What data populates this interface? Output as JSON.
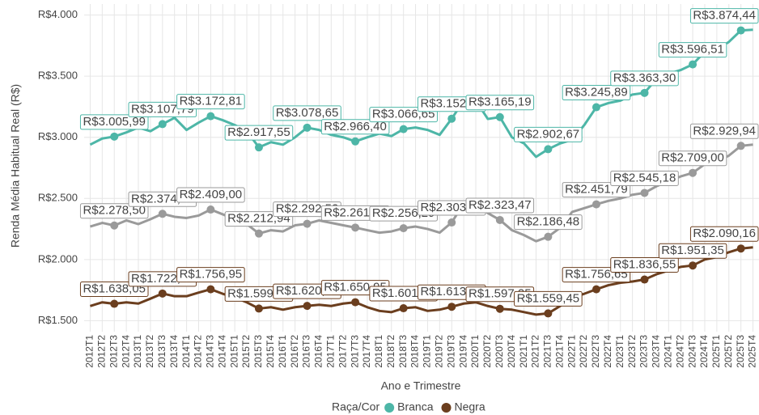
{
  "chart_data": {
    "type": "line",
    "y_label": "Renda Média Habitual Real (R$)",
    "x_label": "Ano e Trimestre",
    "legend_title": "Raça/Cor",
    "legend_position": "bottom",
    "grid": true,
    "ylim": [
      1410,
      4090
    ],
    "yticks": [
      {
        "value": 1500,
        "label": "R$1.500"
      },
      {
        "value": 2000,
        "label": "R$2.000"
      },
      {
        "value": 2500,
        "label": "R$2.500"
      },
      {
        "value": 3000,
        "label": "R$3.000"
      },
      {
        "value": 3500,
        "label": "R$3.500"
      },
      {
        "value": 4000,
        "label": "R$4.000"
      }
    ],
    "categories": [
      "2012T1",
      "2012T2",
      "2012T3",
      "2012T4",
      "2013T1",
      "2013T2",
      "2013T3",
      "2013T4",
      "2014T1",
      "2014T2",
      "2014T3",
      "2014T4",
      "2015T1",
      "2015T2",
      "2015T3",
      "2015T4",
      "2016T1",
      "2016T2",
      "2016T3",
      "2016T4",
      "2017T1",
      "2017T2",
      "2017T3",
      "2017T4",
      "2018T1",
      "2018T2",
      "2018T3",
      "2018T4",
      "2019T1",
      "2019T2",
      "2019T3",
      "2019T4",
      "2020T1",
      "2020T2",
      "2020T3",
      "2020T4",
      "2021T1",
      "2021T2",
      "2021T3",
      "2021T4",
      "2022T1",
      "2022T2",
      "2022T3",
      "2022T4",
      "2023T1",
      "2023T2",
      "2023T3",
      "2023T4",
      "2024T1",
      "2024T2",
      "2024T3",
      "2024T4",
      "2025T1",
      "2025T2",
      "2025T3",
      "2025T4"
    ],
    "series": [
      {
        "name": "Branca",
        "color": "#4db6a7",
        "label_color": "#3aa797",
        "values": [
          2940,
          2990,
          3005.99,
          3040,
          3080,
          3050,
          3107.79,
          3160,
          3060,
          3120,
          3172.81,
          3140,
          3100,
          3050,
          2917.55,
          2960,
          2940,
          3000,
          3078.65,
          3060,
          3020,
          3000,
          2966.4,
          3000,
          3030,
          3010,
          3066.65,
          3080,
          3060,
          3020,
          3152.37,
          3300,
          3300,
          3150,
          3165.19,
          3000,
          2950,
          2840,
          2902.67,
          2950,
          2980,
          3100,
          3245.89,
          3280,
          3300,
          3350,
          3363.3,
          3480,
          3520,
          3550,
          3596.51,
          3700,
          3720,
          3780,
          3874.44,
          3880
        ],
        "value_labels": [
          null,
          null,
          "R$3.005,99",
          null,
          null,
          null,
          "R$3.107,79",
          null,
          null,
          null,
          "R$3.172,81",
          null,
          null,
          null,
          "R$2.917,55",
          null,
          null,
          null,
          "R$3.078,65",
          null,
          null,
          null,
          "R$2.966,40",
          null,
          null,
          null,
          "R$3.066,65",
          null,
          null,
          null,
          "R$3.152,37",
          null,
          null,
          null,
          "R$3.165,19",
          null,
          null,
          null,
          "R$2.902,67",
          null,
          null,
          null,
          "R$3.245,89",
          null,
          null,
          null,
          "R$3.363,30",
          null,
          null,
          null,
          "R$3.596,51",
          null,
          null,
          null,
          "R$3.874,44",
          null
        ]
      },
      {
        "color": "#9a9a9a",
        "label_color": "#777777",
        "values": [
          2270,
          2300,
          2278.5,
          2320,
          2290,
          2330,
          2374.17,
          2350,
          2340,
          2360,
          2409.0,
          2370,
          2330,
          2290,
          2212.94,
          2240,
          2230,
          2280,
          2292.52,
          2320,
          2300,
          2280,
          2261.38,
          2240,
          2220,
          2230,
          2256.29,
          2270,
          2250,
          2220,
          2303.14,
          2460,
          2470,
          2380,
          2323.47,
          2240,
          2200,
          2150,
          2186.48,
          2260,
          2390,
          2420,
          2451.79,
          2480,
          2500,
          2530,
          2545.18,
          2600,
          2640,
          2680,
          2709.0,
          2780,
          2800,
          2850,
          2929.94,
          2940
        ],
        "value_labels": [
          null,
          null,
          "R$2.278,50",
          null,
          null,
          null,
          "R$2.374,17",
          null,
          null,
          null,
          "R$2.409,00",
          null,
          null,
          null,
          "R$2.212,94",
          null,
          null,
          null,
          "R$2.292,52",
          null,
          null,
          null,
          "R$2.261,38",
          null,
          null,
          null,
          "R$2.256,29",
          null,
          null,
          null,
          "R$2.303,14",
          null,
          null,
          null,
          "R$2.323,47",
          null,
          null,
          null,
          "R$2.186,48",
          null,
          null,
          null,
          "R$2.451,79",
          null,
          null,
          null,
          "R$2.545,18",
          null,
          null,
          null,
          "R$2.709,00",
          null,
          null,
          null,
          "R$2.929,94",
          null
        ]
      },
      {
        "name": "Negra",
        "color": "#6b3e1e",
        "label_color": "#6b3e1e",
        "values": [
          1620,
          1650,
          1638.05,
          1650,
          1640,
          1680,
          1722.14,
          1700,
          1700,
          1730,
          1756.95,
          1720,
          1690,
          1650,
          1599.02,
          1610,
          1590,
          1610,
          1620.76,
          1630,
          1620,
          1640,
          1650.95,
          1610,
          1580,
          1570,
          1601.7,
          1610,
          1580,
          1590,
          1613.71,
          1640,
          1650,
          1620,
          1597.25,
          1590,
          1570,
          1550,
          1559.45,
          1620,
          1690,
          1720,
          1756.65,
          1790,
          1810,
          1820,
          1836.55,
          1880,
          1910,
          1940,
          1951.35,
          2000,
          2020,
          2060,
          2090.16,
          2100
        ],
        "value_labels": [
          null,
          null,
          "R$1.638,05",
          null,
          null,
          null,
          "R$1.722,14",
          null,
          null,
          null,
          "R$1.756,95",
          null,
          null,
          null,
          "R$1.599,02",
          null,
          null,
          null,
          "R$1.620,76",
          null,
          null,
          null,
          "R$1.650,95",
          null,
          null,
          null,
          "R$1.601,70",
          null,
          null,
          null,
          "R$1.613,71",
          null,
          null,
          null,
          "R$1.597,25",
          null,
          null,
          null,
          "R$1.559,45",
          null,
          null,
          null,
          "R$1.756,65",
          null,
          null,
          null,
          "R$1.836,55",
          null,
          null,
          null,
          "R$1.951,35",
          null,
          null,
          null,
          "R$2.090,16",
          null
        ]
      }
    ]
  }
}
